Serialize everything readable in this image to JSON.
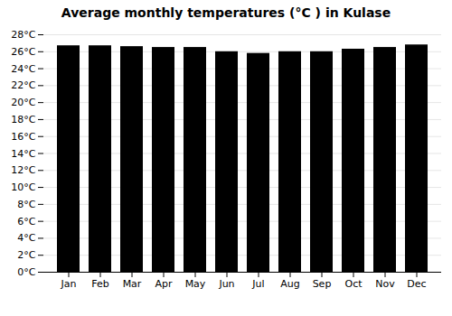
{
  "chart_data": {
    "type": "bar",
    "title": "Average monthly temperatures (°C ) in Kulase",
    "categories": [
      "Jan",
      "Feb",
      "Mar",
      "Apr",
      "May",
      "Jun",
      "Jul",
      "Aug",
      "Sep",
      "Oct",
      "Nov",
      "Dec"
    ],
    "values": [
      26.7,
      26.7,
      26.6,
      26.5,
      26.5,
      26.0,
      25.8,
      26.0,
      26.0,
      26.3,
      26.5,
      26.8
    ],
    "ylim": [
      0,
      28
    ],
    "yticks": [
      {
        "value": 0,
        "label": "0°C"
      },
      {
        "value": 2,
        "label": "2°C"
      },
      {
        "value": 4,
        "label": "4°C"
      },
      {
        "value": 6,
        "label": "6°C"
      },
      {
        "value": 8,
        "label": "8°C"
      },
      {
        "value": 10,
        "label": "10°C"
      },
      {
        "value": 12,
        "label": "12°C"
      },
      {
        "value": 14,
        "label": "14°C"
      },
      {
        "value": 16,
        "label": "16°C"
      },
      {
        "value": 18,
        "label": "18°C"
      },
      {
        "value": 20,
        "label": "20°C"
      },
      {
        "value": 22,
        "label": "22°C"
      },
      {
        "value": 24,
        "label": "24°C"
      },
      {
        "value": 26,
        "label": "26°C"
      },
      {
        "value": 28,
        "label": "28°C"
      }
    ],
    "grid": true
  }
}
